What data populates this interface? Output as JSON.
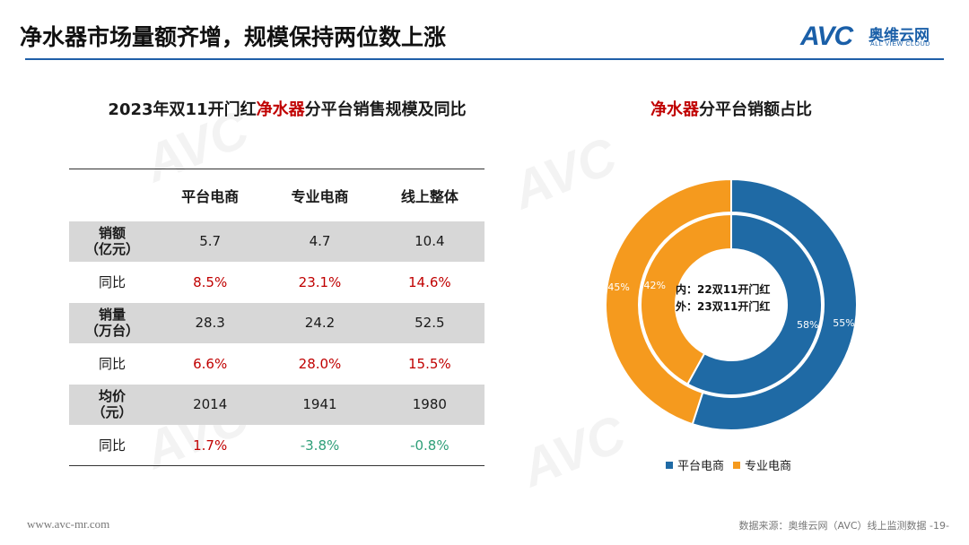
{
  "header": {
    "title": "净水器市场量额齐增，规模保持两位数上涨",
    "logo_text": "AVC",
    "logo_cn": "奥维云网",
    "logo_en": "ALL VIEW CLOUD"
  },
  "table_title": {
    "prefix": "2023年双11开门红",
    "highlight": "净水器",
    "suffix": "分平台销售规模及同比"
  },
  "table": {
    "columns": [
      "平台电商",
      "专业电商",
      "线上整体"
    ],
    "rows": [
      {
        "label1": "销额",
        "label2": "（亿元）",
        "values": [
          "5.7",
          "4.7",
          "10.4"
        ],
        "shaded": true,
        "bold": true
      },
      {
        "label1": "同比",
        "label2": "",
        "values": [
          "8.5%",
          "23.1%",
          "14.6%"
        ],
        "shaded": false,
        "bold": false,
        "signs": [
          "pos",
          "pos",
          "pos"
        ]
      },
      {
        "label1": "销量",
        "label2": "（万台）",
        "values": [
          "28.3",
          "24.2",
          "52.5"
        ],
        "shaded": true,
        "bold": true
      },
      {
        "label1": "同比",
        "label2": "",
        "values": [
          "6.6%",
          "28.0%",
          "15.5%"
        ],
        "shaded": false,
        "bold": false,
        "signs": [
          "pos",
          "pos",
          "pos"
        ]
      },
      {
        "label1": "均价",
        "label2": "（元）",
        "values": [
          "2014",
          "1941",
          "1980"
        ],
        "shaded": true,
        "bold": true
      },
      {
        "label1": "同比",
        "label2": "",
        "values": [
          "1.7%",
          "-3.8%",
          "-0.8%"
        ],
        "shaded": false,
        "bold": false,
        "signs": [
          "pos",
          "neg",
          "neg"
        ]
      }
    ]
  },
  "chart_title": {
    "highlight": "净水器",
    "suffix": "分平台销额占比"
  },
  "chart_data": {
    "type": "pie",
    "categories": [
      "平台电商",
      "专业电商"
    ],
    "series": [
      {
        "ring": "outer",
        "values": [
          55,
          45
        ]
      },
      {
        "ring": "inner",
        "values": [
          58,
          42
        ]
      }
    ],
    "center_label_line1": "内：22双11开门红",
    "center_label_line2": "外：23双11开门红",
    "colors": [
      "#1f6aa5",
      "#f59a1e"
    ],
    "legend": [
      "平台电商",
      "专业电商"
    ],
    "legend_position": "bottom"
  },
  "footer": {
    "website": "www.avc-mr.com",
    "source": "数据来源：奥维云网（AVC）线上监测数据  -19-"
  }
}
